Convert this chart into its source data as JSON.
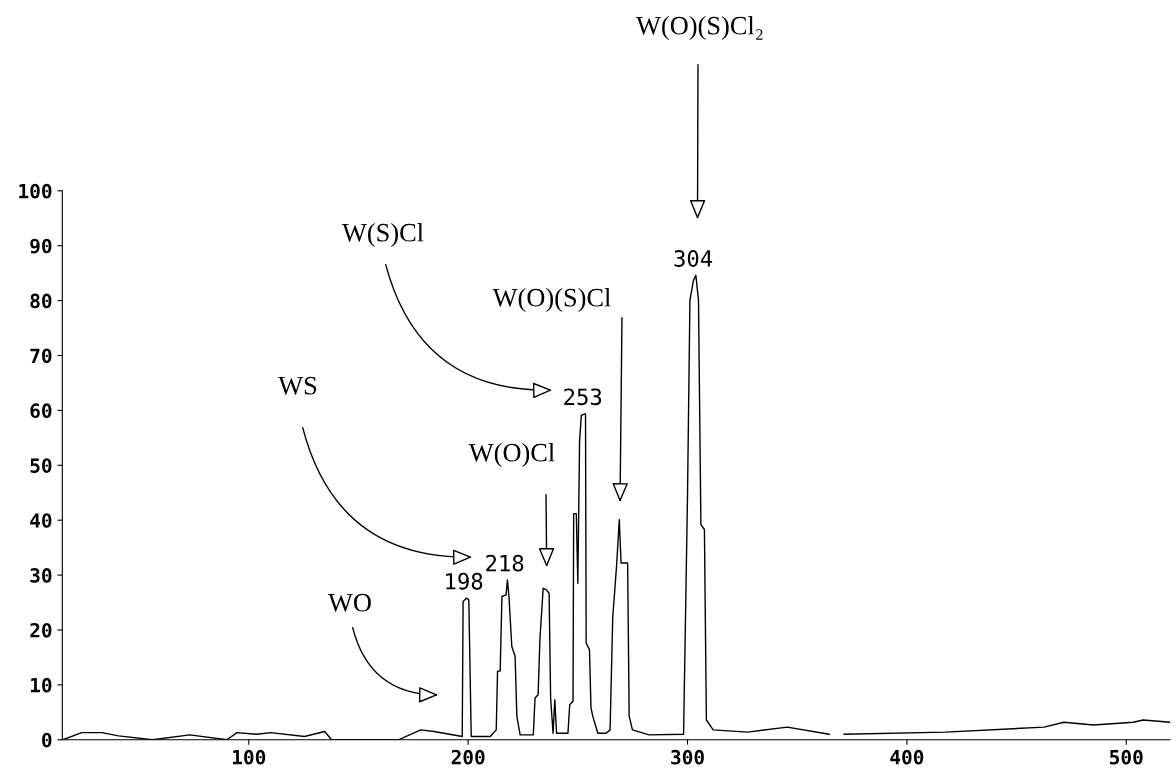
{
  "chart_data": {
    "type": "line",
    "x": [
      15.3,
      23.8,
      33.0,
      40.7,
      56.1,
      73.1,
      90.0,
      94.6,
      103.8,
      110.0,
      125.4,
      134.6,
      137.7,
      168.2,
      178.4,
      184.4,
      197.3,
      197.7,
      199.2,
      200.3,
      201.4,
      210.1,
      212.8,
      213.4,
      214.6,
      215.4,
      217.3,
      217.9,
      218.6,
      219.9,
      221.4,
      222.2,
      223.7,
      229.7,
      230.5,
      231.9,
      232.7,
      234.2,
      235.7,
      236.9,
      237.6,
      238.7,
      239.5,
      240.3,
      245.5,
      246.3,
      247.8,
      248.1,
      249.3,
      250.0,
      250.8,
      251.6,
      253.5,
      253.8,
      255.3,
      256.0,
      256.8,
      259.1,
      262.9,
      264.7,
      265.9,
      267.7,
      268.9,
      269.7,
      271.9,
      272.7,
      273.4,
      274.9,
      282.5,
      298.2,
      300.0,
      301.1,
      302.7,
      303.8,
      305.0,
      306.1,
      307.7,
      308.6,
      311.7,
      327.5,
      345.5,
      364.6,
      368.0,
      371.4,
      417.6,
      462.6,
      471.6,
      485.1,
      503.2,
      507.7,
      519.8
    ],
    "values": [
      0,
      1.3,
      1.3,
      0.7,
      0,
      0.9,
      0,
      1.3,
      1.0,
      1.3,
      0.6,
      1.5,
      0,
      0,
      1.8,
      1.5,
      0.6,
      25.2,
      25.8,
      25.5,
      0.6,
      0.6,
      1.8,
      12.5,
      12.5,
      26.1,
      26.4,
      29.1,
      26.1,
      17.0,
      15.2,
      4.3,
      0.9,
      0.9,
      7.6,
      8.2,
      18.2,
      27.6,
      27.3,
      26.7,
      7.6,
      1.2,
      7.3,
      1.2,
      1.2,
      6.4,
      7.0,
      41.2,
      41.2,
      28.5,
      54.5,
      59.1,
      59.4,
      17.6,
      16.4,
      5.8,
      4.3,
      1.2,
      1.2,
      1.8,
      22.2,
      31.9,
      40.1,
      32.2,
      32.2,
      32.2,
      4.3,
      1.8,
      0.9,
      1.0,
      44.6,
      80.1,
      83.7,
      84.6,
      80.1,
      39.2,
      38.3,
      3.6,
      1.8,
      1.4,
      2.3,
      1.0,
      null,
      1.0,
      1.4,
      2.3,
      3.2,
      2.7,
      3.2,
      3.6,
      3.2
    ],
    "color": "#000000",
    "xlim": [
      15,
      520
    ],
    "ylim": [
      0,
      100
    ],
    "xticks": [
      100,
      200,
      300,
      400,
      500
    ],
    "yticks": [
      0,
      10,
      20,
      30,
      40,
      50,
      60,
      70,
      80,
      90,
      100
    ],
    "annotations": [
      "W(O)(S)Cl₂",
      "W(S)Cl",
      "W(O)(S)Cl",
      "WS",
      "W(O)Cl",
      "WO",
      {
        "text": "198",
        "x": 199.2,
        "y": 25.8
      },
      {
        "text": "218",
        "x": 217.9,
        "y": 29.1
      },
      {
        "text": "253",
        "x": 253.5,
        "y": 59.4
      },
      {
        "text": "304",
        "x": 303.8,
        "y": 84.6
      }
    ]
  }
}
